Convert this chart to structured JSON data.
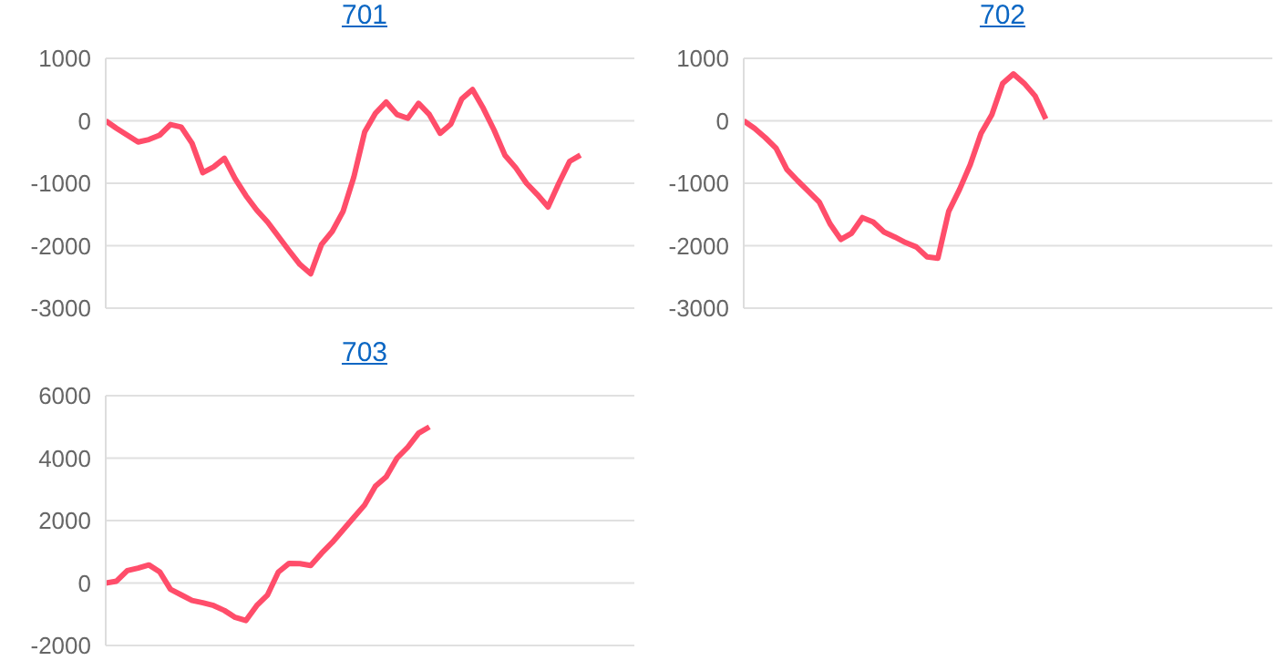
{
  "chart_data": [
    {
      "type": "line",
      "title": "701",
      "categories": [
        null,
        null,
        null,
        null,
        null,
        null,
        null,
        null,
        null,
        null,
        null,
        null,
        null,
        null,
        null,
        null,
        null,
        null,
        null,
        null,
        null,
        null,
        null,
        null,
        null,
        null,
        null,
        null,
        null,
        null,
        null,
        null,
        null,
        null,
        null,
        null,
        null,
        null,
        null,
        null,
        null,
        null,
        null,
        null,
        null,
        null,
        null,
        null,
        null,
        null
      ],
      "series": [
        {
          "color": "#ff4d6a",
          "values": [
            0,
            -120,
            -230,
            -340,
            -300,
            -230,
            -60,
            -100,
            -360,
            -830,
            -740,
            -600,
            -930,
            -1200,
            -1430,
            -1620,
            -1850,
            -2080,
            -2300,
            -2450,
            -1980,
            -1770,
            -1450,
            -900,
            -180,
            120,
            300,
            100,
            40,
            280,
            100,
            -200,
            -50,
            350,
            500,
            200,
            -150,
            -550,
            -750,
            -1000,
            -1180,
            -1380,
            -1000,
            -650,
            -550,
            null,
            null,
            null,
            null,
            null
          ]
        }
      ],
      "ylim": [
        -3000,
        1000
      ],
      "yticks": [
        -3000,
        -2000,
        -1000,
        0,
        1000
      ],
      "grid": "y",
      "tick_labels": "y",
      "marker": "none",
      "line_style": "solid",
      "legend": false
    },
    {
      "type": "line",
      "title": "702",
      "categories": [
        null,
        null,
        null,
        null,
        null,
        null,
        null,
        null,
        null,
        null,
        null,
        null,
        null,
        null,
        null,
        null,
        null,
        null,
        null,
        null,
        null,
        null,
        null,
        null,
        null,
        null,
        null,
        null,
        null,
        null,
        null,
        null,
        null,
        null,
        null,
        null,
        null,
        null,
        null,
        null,
        null,
        null,
        null,
        null,
        null,
        null,
        null,
        null,
        null,
        null
      ],
      "series": [
        {
          "color": "#ff4d6a",
          "values": [
            0,
            -120,
            -270,
            -440,
            -780,
            -960,
            -1130,
            -1300,
            -1650,
            -1900,
            -1800,
            -1550,
            -1620,
            -1780,
            -1860,
            -1950,
            -2020,
            -2180,
            -2200,
            -1450,
            -1100,
            -700,
            -200,
            100,
            600,
            750,
            600,
            400,
            30,
            null,
            null,
            null,
            null,
            null,
            null,
            null,
            null,
            null,
            null,
            null,
            null,
            null,
            null,
            null,
            null,
            null,
            null,
            null,
            null,
            null
          ]
        }
      ],
      "ylim": [
        -3000,
        1000
      ],
      "yticks": [
        -3000,
        -2000,
        -1000,
        0,
        1000
      ],
      "grid": "y",
      "tick_labels": "y",
      "marker": "none",
      "line_style": "solid",
      "legend": false
    },
    {
      "type": "line",
      "title": "703",
      "categories": [
        null,
        null,
        null,
        null,
        null,
        null,
        null,
        null,
        null,
        null,
        null,
        null,
        null,
        null,
        null,
        null,
        null,
        null,
        null,
        null,
        null,
        null,
        null,
        null,
        null,
        null,
        null,
        null,
        null,
        null,
        null,
        null,
        null,
        null,
        null,
        null,
        null,
        null,
        null,
        null,
        null,
        null,
        null,
        null,
        null,
        null,
        null,
        null,
        null,
        null
      ],
      "series": [
        {
          "color": "#ff4d6a",
          "values": [
            0,
            60,
            400,
            480,
            580,
            360,
            -200,
            -380,
            -560,
            -630,
            -720,
            -880,
            -1100,
            -1200,
            -720,
            -380,
            350,
            630,
            620,
            560,
            950,
            1300,
            1700,
            2100,
            2500,
            3100,
            3400,
            4000,
            4350,
            4800,
            5000,
            null,
            null,
            null,
            null,
            null,
            null,
            null,
            null,
            null,
            null,
            null,
            null,
            null,
            null,
            null,
            null,
            null,
            null,
            null
          ]
        }
      ],
      "ylim": [
        -2000,
        6000
      ],
      "yticks": [
        -2000,
        0,
        2000,
        4000,
        6000
      ],
      "grid": "y",
      "tick_labels": "y",
      "marker": "none",
      "line_style": "solid",
      "legend": false
    }
  ]
}
